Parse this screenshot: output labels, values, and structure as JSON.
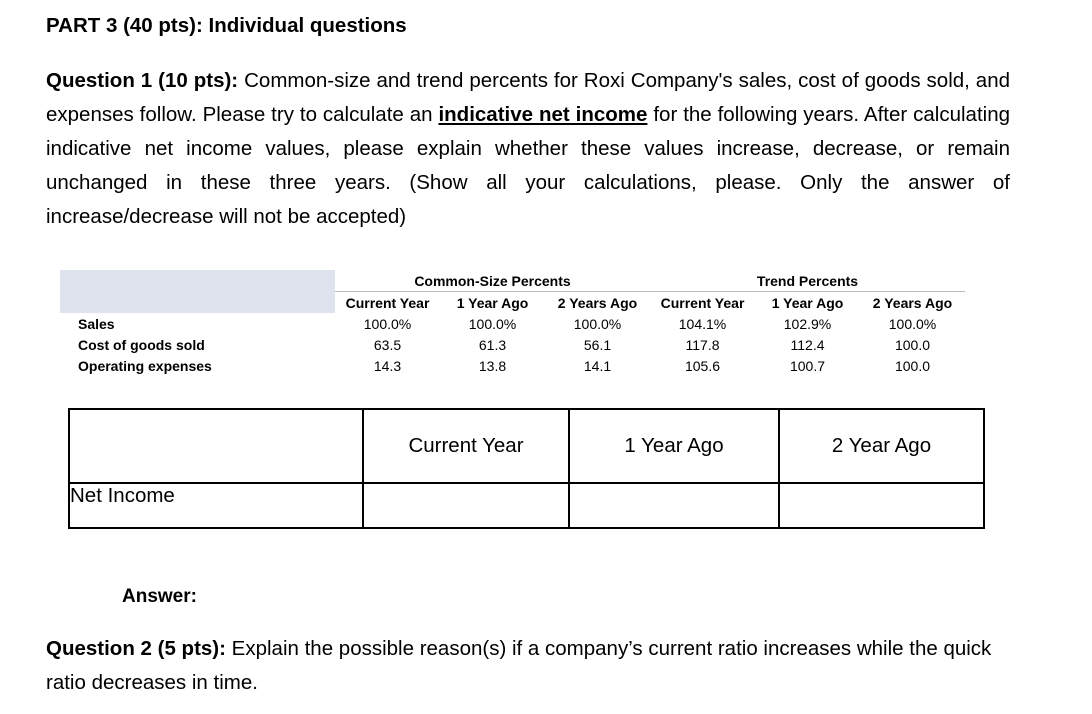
{
  "part_title": "PART 3 (40 pts): Individual questions",
  "question1": {
    "label": "Question 1 (10 pts):",
    "text_before": "Common-size and trend percents for Roxi Company's sales, cost of goods sold, and expenses follow. Please try to calculate an",
    "emphasis": "indicative net income",
    "text_after": "for the following years. After calculating indicative net income values, please explain whether these values increase, decrease, or remain unchanged in these three years. (Show all your calculations, please. Only the answer of increase/decrease will not be accepted)"
  },
  "data_table": {
    "group_headers": [
      "Common-Size Percents",
      "Trend Percents"
    ],
    "column_headers": [
      "Current Year",
      "1 Year Ago",
      "2 Years Ago",
      "Current Year",
      "1 Year Ago",
      "2 Years Ago"
    ],
    "rows": [
      {
        "label": "Sales",
        "cells": [
          "100.0%",
          "100.0%",
          "100.0%",
          "104.1%",
          "102.9%",
          "100.0%"
        ]
      },
      {
        "label": "Cost of goods sold",
        "cells": [
          "63.5",
          "61.3",
          "56.1",
          "117.8",
          "112.4",
          "100.0"
        ]
      },
      {
        "label": "Operating expenses",
        "cells": [
          "14.3",
          "13.8",
          "14.1",
          "105.6",
          "100.7",
          "100.0"
        ]
      }
    ]
  },
  "answer_table": {
    "headers": [
      "Current Year",
      "1 Year Ago",
      "2 Year Ago"
    ],
    "row_label": "Net Income"
  },
  "answer_label": "Answer:",
  "question2": {
    "label": "Question 2 (5 pts):",
    "text": "Explain the possible reason(s) if a company’s current ratio increases while the quick ratio decreases in time."
  }
}
